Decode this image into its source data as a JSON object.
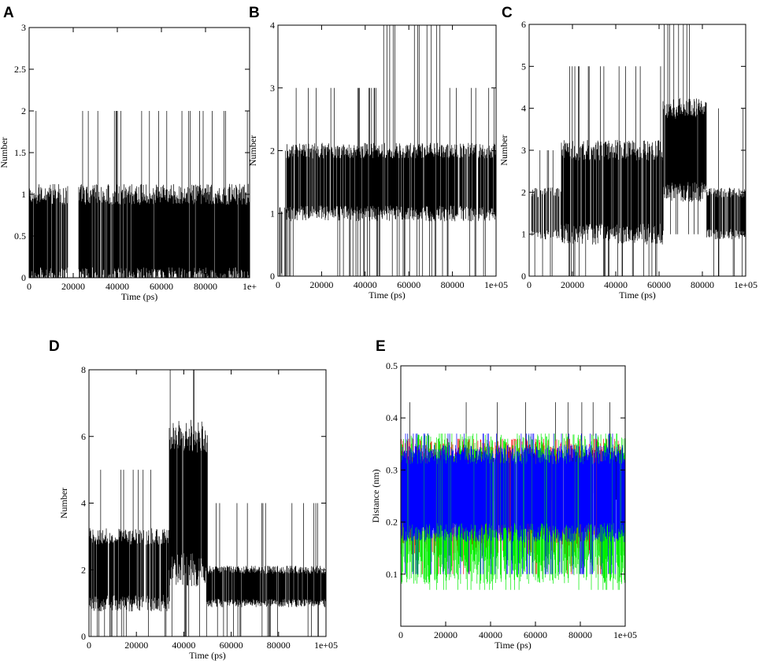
{
  "figure": {
    "background": "#ffffff"
  },
  "chart_data": [
    {
      "panel": "A",
      "type": "line",
      "xlabel": "Time (ps)",
      "ylabel": "Number",
      "xlim": [
        0,
        100000
      ],
      "ylim": [
        0,
        3
      ],
      "xticks": [
        0,
        20000,
        40000,
        60000,
        80000,
        100000
      ],
      "xtick_labels": [
        "0",
        "20000",
        "40000",
        "60000",
        "80000",
        "1e+"
      ],
      "yticks": [
        0,
        0.5,
        1,
        1.5,
        2,
        2.5,
        3
      ],
      "ytick_labels": [
        "0",
        "0.5",
        "1",
        "1.5",
        "2",
        "2.5",
        "3"
      ],
      "grid": false,
      "series": [
        {
          "color": "#000000",
          "segments": [
            {
              "x": [
                0,
                17500
              ],
              "min": 0,
              "low": 0,
              "high": 1,
              "max": 2,
              "density": 0.9
            },
            {
              "x": [
                17500,
                22500
              ],
              "min": 0,
              "low": 0,
              "high": 0,
              "max": 2,
              "density": 0.1
            },
            {
              "x": [
                22500,
                36000
              ],
              "min": 0,
              "low": 0,
              "high": 1,
              "max": 2,
              "density": 0.9
            },
            {
              "x": [
                36000,
                100000
              ],
              "min": 0,
              "low": 0,
              "high": 1,
              "max": 2,
              "density": 0.95
            }
          ]
        }
      ]
    },
    {
      "panel": "B",
      "type": "line",
      "xlabel": "Time (ps)",
      "ylabel": "Number",
      "xlim": [
        0,
        100000
      ],
      "ylim": [
        0,
        4
      ],
      "xticks": [
        0,
        20000,
        40000,
        60000,
        80000,
        100000
      ],
      "xtick_labels": [
        "0",
        "20000",
        "40000",
        "60000",
        "80000",
        "1e+05"
      ],
      "yticks": [
        0,
        1,
        2,
        3,
        4
      ],
      "ytick_labels": [
        "0",
        "1",
        "2",
        "3",
        "4"
      ],
      "grid": false,
      "series": [
        {
          "color": "#000000",
          "segments": [
            {
              "x": [
                0,
                4000
              ],
              "min": 0,
              "low": 0,
              "high": 1,
              "max": 2,
              "density": 0.5
            },
            {
              "x": [
                4000,
                22000
              ],
              "min": 0,
              "low": 1,
              "high": 2,
              "max": 3,
              "density": 0.8
            },
            {
              "x": [
                22000,
                48000
              ],
              "min": 0,
              "low": 1,
              "high": 2,
              "max": 3,
              "density": 0.9
            },
            {
              "x": [
                48000,
                78000
              ],
              "min": 0,
              "low": 1,
              "high": 2,
              "max": 4,
              "density": 0.9
            },
            {
              "x": [
                78000,
                100000
              ],
              "min": 0,
              "low": 1,
              "high": 2,
              "max": 3,
              "density": 0.8
            }
          ]
        }
      ]
    },
    {
      "panel": "C",
      "type": "line",
      "xlabel": "Time (ps)",
      "ylabel": "Number",
      "xlim": [
        0,
        100000
      ],
      "ylim": [
        0,
        6
      ],
      "xticks": [
        0,
        20000,
        40000,
        60000,
        80000,
        100000
      ],
      "xtick_labels": [
        "0",
        "20000",
        "40000",
        "60000",
        "80000",
        "1e+05"
      ],
      "yticks": [
        0,
        1,
        2,
        3,
        4,
        5,
        6
      ],
      "ytick_labels": [
        "0",
        "1",
        "2",
        "3",
        "4",
        "5",
        "6"
      ],
      "grid": false,
      "series": [
        {
          "color": "#000000",
          "segments": [
            {
              "x": [
                0,
                15000
              ],
              "min": 0,
              "low": 1,
              "high": 2,
              "max": 3,
              "density": 0.6
            },
            {
              "x": [
                15000,
                62000
              ],
              "min": 0,
              "low": 1,
              "high": 3,
              "max": 5,
              "density": 0.9
            },
            {
              "x": [
                62000,
                82000
              ],
              "min": 1,
              "low": 2,
              "high": 4,
              "max": 6,
              "density": 0.95
            },
            {
              "x": [
                82000,
                100000
              ],
              "min": 0,
              "low": 1,
              "high": 2,
              "max": 4,
              "density": 0.8
            }
          ]
        }
      ]
    },
    {
      "panel": "D",
      "type": "line",
      "xlabel": "Time (ps)",
      "ylabel": "Number",
      "xlim": [
        0,
        100000
      ],
      "ylim": [
        0,
        8
      ],
      "xticks": [
        0,
        20000,
        40000,
        60000,
        80000,
        100000
      ],
      "xtick_labels": [
        "0",
        "20000",
        "40000",
        "60000",
        "80000",
        "1e+05"
      ],
      "yticks": [
        0,
        2,
        4,
        6,
        8
      ],
      "ytick_labels": [
        "0",
        "2",
        "4",
        "6",
        "8"
      ],
      "grid": false,
      "series": [
        {
          "color": "#000000",
          "segments": [
            {
              "x": [
                0,
                34000
              ],
              "min": 0,
              "low": 1,
              "high": 3,
              "max": 5,
              "density": 0.85
            },
            {
              "x": [
                34000,
                50000
              ],
              "min": 0,
              "low": 2,
              "high": 6,
              "max": 8,
              "density": 0.95
            },
            {
              "x": [
                50000,
                100000
              ],
              "min": 0,
              "low": 1,
              "high": 2,
              "max": 4,
              "density": 0.85
            }
          ]
        }
      ]
    },
    {
      "panel": "E",
      "type": "line",
      "xlabel": "Time (ps)",
      "ylabel": "Distance (nm)",
      "xlim": [
        0,
        100000
      ],
      "ylim": [
        0,
        0.5
      ],
      "xticks": [
        0,
        20000,
        40000,
        60000,
        80000,
        100000
      ],
      "xtick_labels": [
        "0",
        "20000",
        "40000",
        "60000",
        "80000",
        "1e+05"
      ],
      "yticks": [
        0.1,
        0.2,
        0.3,
        0.4,
        0.5
      ],
      "ytick_labels": [
        "0.1",
        "0.2",
        "0.3",
        "0.4",
        "0.5"
      ],
      "grid": false,
      "series": [
        {
          "color": "#000000",
          "segments": [
            {
              "x": [
                0,
                100000
              ],
              "min": 0.2,
              "low": 0.25,
              "high": 0.33,
              "max": 0.43,
              "density": 0.3
            }
          ]
        },
        {
          "color": "#ff0000",
          "segments": [
            {
              "x": [
                0,
                100000
              ],
              "min": 0.1,
              "low": 0.16,
              "high": 0.34,
              "max": 0.36,
              "density": 0.6
            }
          ]
        },
        {
          "color": "#00ee00",
          "segments": [
            {
              "x": [
                0,
                100000
              ],
              "min": 0.07,
              "low": 0.11,
              "high": 0.34,
              "max": 0.37,
              "density": 0.7
            }
          ]
        },
        {
          "color": "#0000ff",
          "segments": [
            {
              "x": [
                0,
                100000
              ],
              "min": 0.1,
              "low": 0.18,
              "high": 0.33,
              "max": 0.37,
              "density": 0.9
            }
          ]
        }
      ]
    }
  ]
}
